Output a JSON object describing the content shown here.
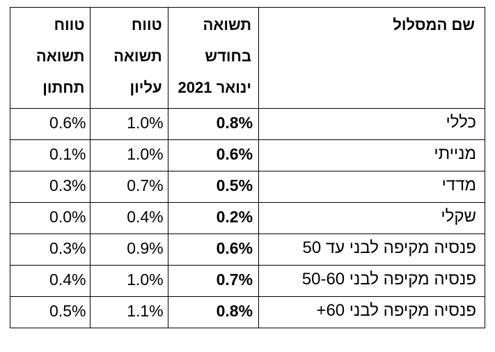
{
  "table": {
    "headers": {
      "name": [
        "שם המסלול"
      ],
      "return": [
        "תשואה",
        "בחודש",
        "ינואר  2021"
      ],
      "upper": [
        "טווח",
        "תשואה",
        "עליון"
      ],
      "lower": [
        "טווח",
        "תשואה",
        "תחתון"
      ]
    },
    "rows": [
      {
        "name": "כללי",
        "return": "0.8%",
        "upper": "1.0%",
        "lower": "0.6%"
      },
      {
        "name": "מנייתי",
        "return": "0.6%",
        "upper": "1.0%",
        "lower": "0.1%"
      },
      {
        "name": "מדדי",
        "return": "0.5%",
        "upper": "0.7%",
        "lower": "0.3%"
      },
      {
        "name": "שקלי",
        "return": "0.2%",
        "upper": "0.4%",
        "lower": "0.0%"
      },
      {
        "name": "פנסיה מקיפה לבני עד 50",
        "return": "0.6%",
        "upper": "0.9%",
        "lower": "0.3%"
      },
      {
        "name": "פנסיה מקיפה לבני 50-60",
        "return": "0.7%",
        "upper": "1.0%",
        "lower": "0.4%"
      },
      {
        "name": "פנסיה מקיפה לבני 60+",
        "return": "0.8%",
        "upper": "1.1%",
        "lower": "0.5%"
      }
    ]
  }
}
